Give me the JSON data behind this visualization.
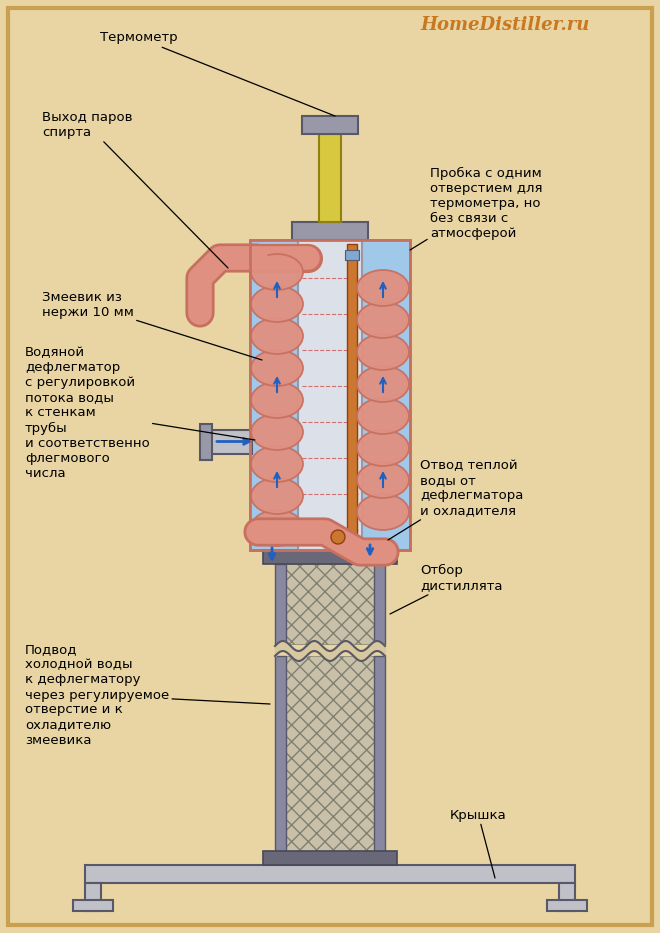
{
  "bg_color": "#e8d5a3",
  "border_color": "#c8a050",
  "title_text": "HomeDistiller.ru",
  "title_color": "#c87820",
  "labels": {
    "thermometer": "Термометр",
    "vapor_exit": "Выход паров\nспирта",
    "coil": "Змеевик из\nнержи 10 мм",
    "dephlegmator": "Водяной\nдефлегматор\nс регулировкой\nпотока воды\nк стенкам\nтрубы\nи соответственно\nфлегмового\nчисла",
    "cold_water": "Подвод\nхолодной воды\nк дефлегматору\nчерез регулируемое\nотверстие и к\nохладителю\nзмеевика",
    "warm_water": "Отвод теплой\nводы от\nдефлегматора\nи охладителя",
    "distillate": "Отбор\nдистиллята",
    "cork": "Пробка с одним\nотверстием для\nтермометра, но\nбез связи с\nатмосферой",
    "cap": "Крышка"
  },
  "colors": {
    "pink_light": "#f0b0a0",
    "pink_medium": "#e09080",
    "pink_dark": "#c87060",
    "blue_light": "#a0c8e8",
    "blue_medium": "#80a8d0",
    "gray_light": "#c0c0c8",
    "gray_medium": "#9898a8",
    "gray_dark": "#585868",
    "orange_tube": "#cc7730",
    "yellow_tube": "#d8c840",
    "white_inner": "#dce0e8",
    "steel_gray": "#8888a0",
    "dark_gray": "#484858",
    "flange_gray": "#686878",
    "packing_bg": "#c8c0a8",
    "blue_arrow": "#2060c0"
  }
}
